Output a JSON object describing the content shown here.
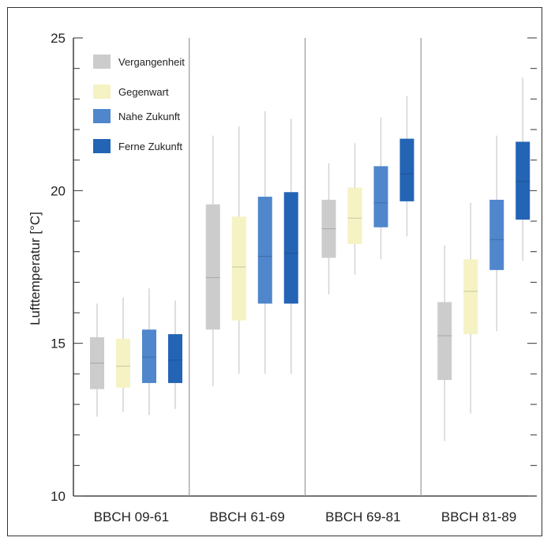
{
  "chart_data": {
    "type": "boxplot",
    "title": "",
    "xlabel": "",
    "ylabel": "Lufttemperatur [°C]",
    "ylim": [
      10,
      25
    ],
    "yticks": [
      10,
      15,
      20,
      25
    ],
    "legend_placement": "top-left",
    "grid": false,
    "categories": [
      "BBCH 09-61",
      "BBCH 61-69",
      "BBCH 69-81",
      "BBCH 81-89"
    ],
    "series": [
      {
        "name": "Vergangenheit",
        "color": "#cccccc",
        "boxes": [
          {
            "whisker_low": 12.6,
            "q1": 13.5,
            "median": 14.35,
            "q3": 15.2,
            "whisker_high": 16.3
          },
          {
            "whisker_low": 13.6,
            "q1": 15.45,
            "median": 17.15,
            "q3": 19.55,
            "whisker_high": 21.8
          },
          {
            "whisker_low": 16.6,
            "q1": 17.8,
            "median": 18.75,
            "q3": 19.7,
            "whisker_high": 20.9
          },
          {
            "whisker_low": 11.8,
            "q1": 13.8,
            "median": 15.25,
            "q3": 16.35,
            "whisker_high": 18.2
          }
        ]
      },
      {
        "name": "Gegenwart",
        "color": "#f5f2c4",
        "boxes": [
          {
            "whisker_low": 12.75,
            "q1": 13.55,
            "median": 14.25,
            "q3": 15.15,
            "whisker_high": 16.5
          },
          {
            "whisker_low": 14.0,
            "q1": 15.75,
            "median": 17.5,
            "q3": 19.15,
            "whisker_high": 22.1
          },
          {
            "whisker_low": 17.25,
            "q1": 18.25,
            "median": 19.1,
            "q3": 20.1,
            "whisker_high": 21.55
          },
          {
            "whisker_low": 12.7,
            "q1": 15.3,
            "median": 16.7,
            "q3": 17.75,
            "whisker_high": 19.6
          }
        ]
      },
      {
        "name": "Nahe Zukunft",
        "color": "#4f86cc",
        "boxes": [
          {
            "whisker_low": 12.65,
            "q1": 13.7,
            "median": 14.55,
            "q3": 15.45,
            "whisker_high": 16.8
          },
          {
            "whisker_low": 14.0,
            "q1": 16.3,
            "median": 17.85,
            "q3": 19.8,
            "whisker_high": 22.6
          },
          {
            "whisker_low": 17.75,
            "q1": 18.8,
            "median": 19.6,
            "q3": 20.8,
            "whisker_high": 22.4
          },
          {
            "whisker_low": 15.4,
            "q1": 17.4,
            "median": 18.4,
            "q3": 19.7,
            "whisker_high": 21.8
          }
        ]
      },
      {
        "name": "Ferne Zukunft",
        "color": "#2464b5",
        "boxes": [
          {
            "whisker_low": 12.85,
            "q1": 13.7,
            "median": 14.45,
            "q3": 15.3,
            "whisker_high": 16.4
          },
          {
            "whisker_low": 14.0,
            "q1": 16.3,
            "median": 17.95,
            "q3": 19.95,
            "whisker_high": 22.35
          },
          {
            "whisker_low": 18.5,
            "q1": 19.65,
            "median": 20.55,
            "q3": 21.7,
            "whisker_high": 23.1
          },
          {
            "whisker_low": 17.7,
            "q1": 19.05,
            "median": 20.3,
            "q3": 21.6,
            "whisker_high": 23.7
          }
        ]
      }
    ]
  }
}
